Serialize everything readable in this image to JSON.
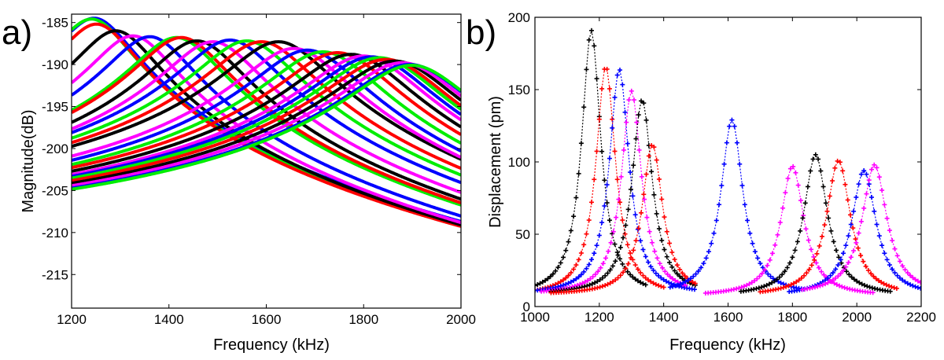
{
  "chart_data": [
    {
      "panel_label": "a)",
      "type": "line",
      "xlabel": "Frequency (kHz)",
      "ylabel": "Magnitude(dB)",
      "xlim": [
        1200,
        2000
      ],
      "ylim": [
        -219,
        -184
      ],
      "xticks": [
        1200,
        1400,
        1600,
        1800,
        2000
      ],
      "yticks": [
        -185,
        -190,
        -195,
        -200,
        -205,
        -210,
        -215
      ],
      "colors": [
        "#0000ff",
        "#00ee00",
        "#ff0000",
        "#000000",
        "#ff00ff"
      ],
      "series": [
        {
          "color": "#0000ff",
          "peak_x": 1250,
          "peak_db": -184.5
        },
        {
          "color": "#00ee00",
          "peak_x": 1245,
          "peak_db": -184.6
        },
        {
          "color": "#ff0000",
          "peak_x": 1255,
          "peak_db": -185.2
        },
        {
          "color": "#000000",
          "peak_x": 1295,
          "peak_db": -186.0
        },
        {
          "color": "#ff00ff",
          "peak_x": 1330,
          "peak_db": -186.6
        },
        {
          "color": "#0000ff",
          "peak_x": 1365,
          "peak_db": -186.7
        },
        {
          "color": "#00ee00",
          "peak_x": 1420,
          "peak_db": -186.8
        },
        {
          "color": "#ff0000",
          "peak_x": 1430,
          "peak_db": -186.8
        },
        {
          "color": "#000000",
          "peak_x": 1462,
          "peak_db": -187.2
        },
        {
          "color": "#ff00ff",
          "peak_x": 1495,
          "peak_db": -187.3
        },
        {
          "color": "#0000ff",
          "peak_x": 1530,
          "peak_db": -187.1
        },
        {
          "color": "#00ee00",
          "peak_x": 1565,
          "peak_db": -187.2
        },
        {
          "color": "#ff0000",
          "peak_x": 1595,
          "peak_db": -187.3
        },
        {
          "color": "#000000",
          "peak_x": 1630,
          "peak_db": -187.3
        },
        {
          "color": "#ff00ff",
          "peak_x": 1662,
          "peak_db": -188.1
        },
        {
          "color": "#0000ff",
          "peak_x": 1690,
          "peak_db": -188.3
        },
        {
          "color": "#00ee00",
          "peak_x": 1722,
          "peak_db": -188.5
        },
        {
          "color": "#ff0000",
          "peak_x": 1752,
          "peak_db": -188.6
        },
        {
          "color": "#000000",
          "peak_x": 1780,
          "peak_db": -188.8
        },
        {
          "color": "#ff00ff",
          "peak_x": 1805,
          "peak_db": -189.0
        },
        {
          "color": "#0000ff",
          "peak_x": 1822,
          "peak_db": -189.1
        },
        {
          "color": "#00ee00",
          "peak_x": 1838,
          "peak_db": -189.2
        },
        {
          "color": "#ff0000",
          "peak_x": 1852,
          "peak_db": -189.4
        },
        {
          "color": "#000000",
          "peak_x": 1870,
          "peak_db": -189.6
        },
        {
          "color": "#ff00ff",
          "peak_x": 1885,
          "peak_db": -189.8
        },
        {
          "color": "#0000ff",
          "peak_x": 1900,
          "peak_db": -190.0
        },
        {
          "color": "#00ee00",
          "peak_x": 1905,
          "peak_db": -190.1
        }
      ]
    },
    {
      "panel_label": "b)",
      "type": "line",
      "xlabel": "Frequency (kHz)",
      "ylabel": "Displacement (pm)",
      "xlim": [
        1000,
        2200
      ],
      "ylim": [
        0,
        200
      ],
      "xticks": [
        1000,
        1200,
        1400,
        1600,
        1800,
        2000,
        2200
      ],
      "yticks": [
        0,
        50,
        100,
        150,
        200
      ],
      "series": [
        {
          "color": "#000000",
          "peak_x": 1175,
          "peak_y": 191,
          "start_x": 1000,
          "end_x": 1350,
          "floor": 7
        },
        {
          "color": "#ff0000",
          "peak_x": 1220,
          "peak_y": 166,
          "start_x": 1000,
          "end_x": 1400,
          "floor": 7
        },
        {
          "color": "#0000ff",
          "peak_x": 1262,
          "peak_y": 164,
          "start_x": 1000,
          "end_x": 1500,
          "floor": 8
        },
        {
          "color": "#ff00ff",
          "peak_x": 1300,
          "peak_y": 149,
          "start_x": 1020,
          "end_x": 1470,
          "floor": 8
        },
        {
          "color": "#000000",
          "peak_x": 1333,
          "peak_y": 143,
          "start_x": 1050,
          "end_x": 1500,
          "floor": 8
        },
        {
          "color": "#ff0000",
          "peak_x": 1365,
          "peak_y": 112,
          "start_x": 1050,
          "end_x": 1500,
          "floor": 8
        },
        {
          "color": "#0000ff",
          "peak_x": 1612,
          "peak_y": 129,
          "start_x": 1420,
          "end_x": 1840,
          "floor": 8
        },
        {
          "color": "#ff00ff",
          "peak_x": 1800,
          "peak_y": 97,
          "start_x": 1530,
          "end_x": 2050,
          "floor": 7
        },
        {
          "color": "#000000",
          "peak_x": 1872,
          "peak_y": 105,
          "start_x": 1640,
          "end_x": 2110,
          "floor": 7
        },
        {
          "color": "#ff0000",
          "peak_x": 1943,
          "peak_y": 101,
          "start_x": 1700,
          "end_x": 2130,
          "floor": 7
        },
        {
          "color": "#0000ff",
          "peak_x": 2022,
          "peak_y": 94,
          "start_x": 1790,
          "end_x": 2200,
          "floor": 7
        },
        {
          "color": "#ff00ff",
          "peak_x": 2055,
          "peak_y": 98,
          "start_x": 1830,
          "end_x": 2200,
          "floor": 8
        }
      ]
    }
  ]
}
